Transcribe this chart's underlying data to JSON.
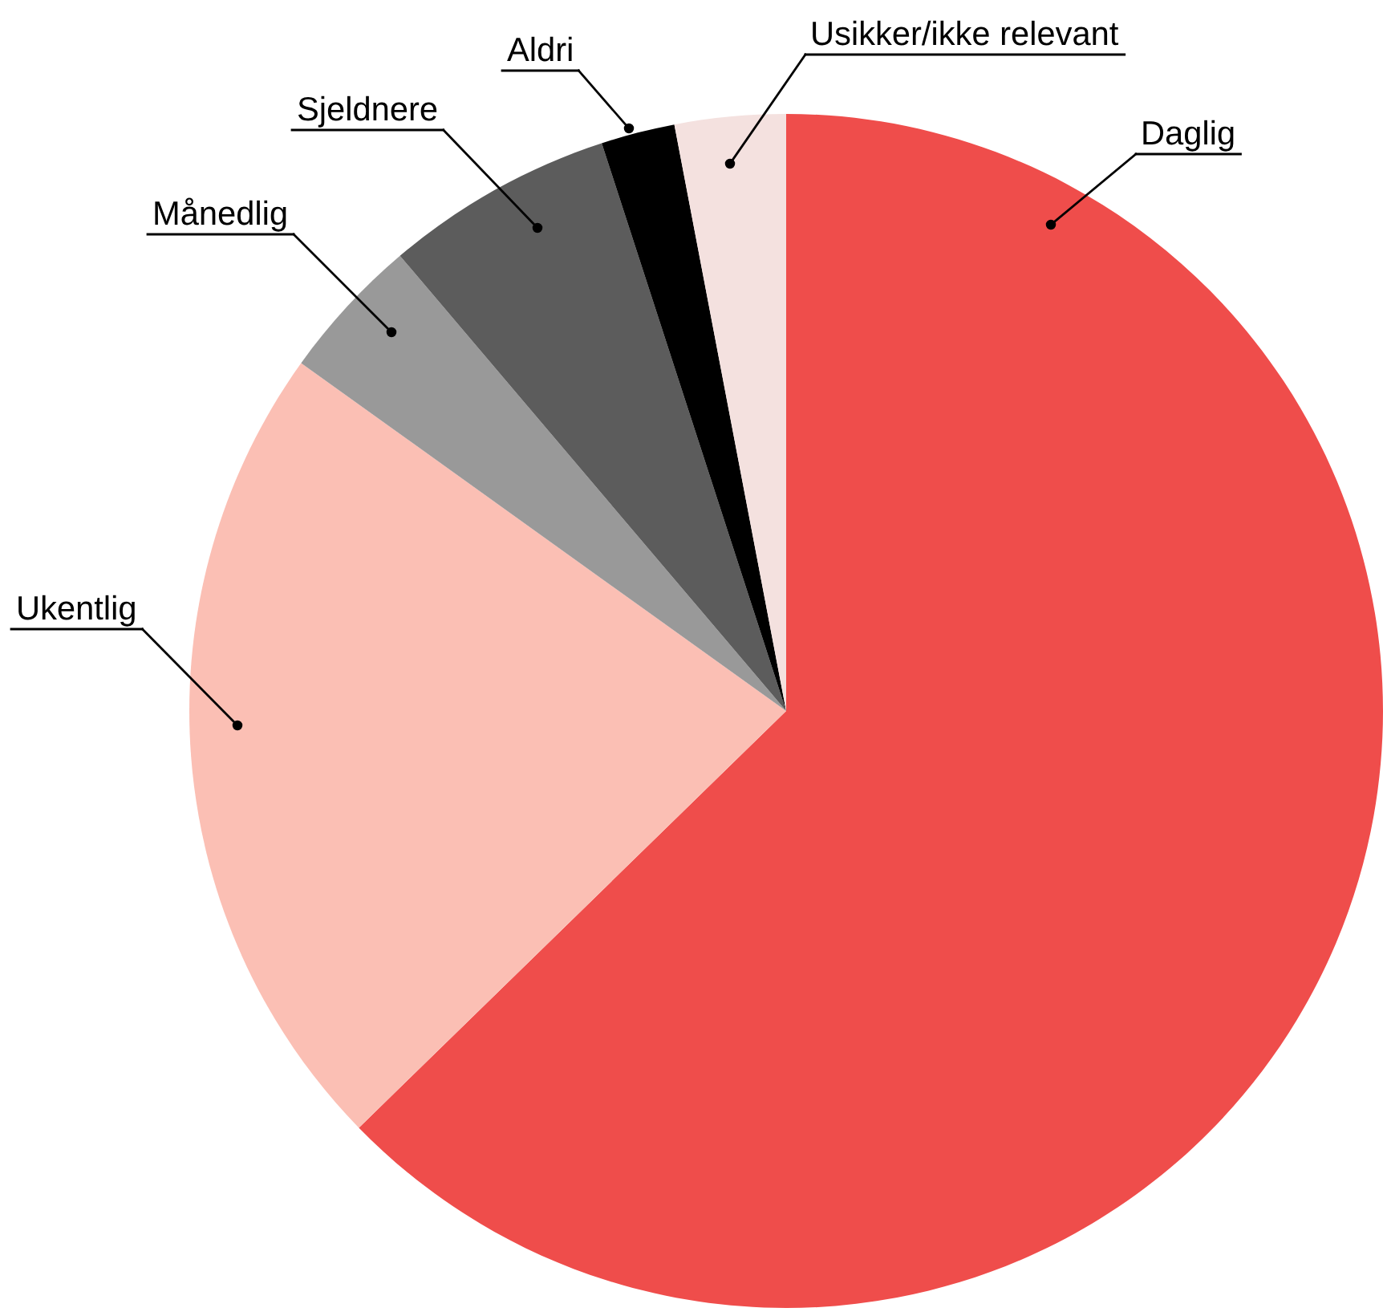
{
  "chart_data": {
    "type": "pie",
    "categories": [
      "Daglig",
      "Ukentlig",
      "Månedlig",
      "Sjeldnere",
      "Aldri",
      "Usikker/ikke relevant"
    ],
    "values": [
      62.7,
      22.2,
      3.9,
      6.2,
      2.0,
      3.0
    ],
    "colors": [
      "#ef4d4b",
      "#fbbfb4",
      "#999999",
      "#5c5c5c",
      "#000000",
      "#f4e1df"
    ],
    "legend": false
  }
}
